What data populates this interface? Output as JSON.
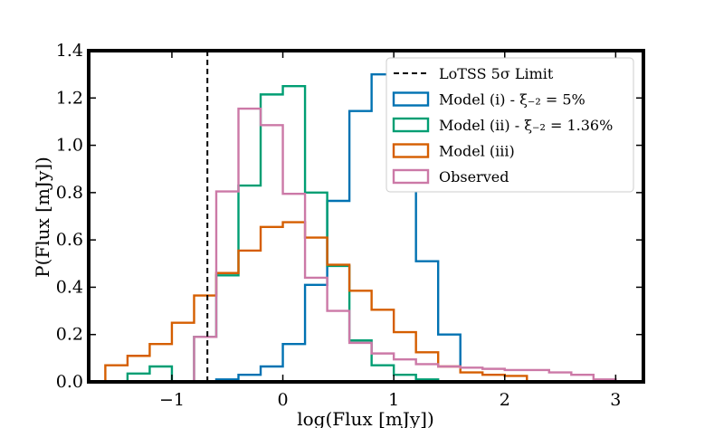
{
  "chart_data": {
    "type": "histogram",
    "title": "",
    "xlabel": "log(Flux [mJy])",
    "ylabel": "P(Flux [mJy])",
    "xlim": [
      -1.75,
      3.25
    ],
    "ylim": [
      0.0,
      1.4
    ],
    "xticks": [
      -1,
      0,
      1,
      2,
      3
    ],
    "xtick_labels": [
      "−1",
      "0",
      "1",
      "2",
      "3"
    ],
    "yticks": [
      0.0,
      0.2,
      0.4,
      0.6,
      0.8,
      1.0,
      1.2,
      1.4
    ],
    "ytick_labels": [
      "0.0",
      "0.2",
      "0.4",
      "0.6",
      "0.8",
      "1.0",
      "1.2",
      "1.4"
    ],
    "legend_position": "top-right",
    "vline": {
      "x": -0.68,
      "label": "LoTSS 5σ Limit",
      "color": "#000000",
      "style": "dashed"
    },
    "series": [
      {
        "name": "Model (i) - ξ₋₂ = 5%",
        "color": "#0072b2",
        "edges": [
          -0.6,
          -0.4,
          -0.2,
          0.0,
          0.2,
          0.4,
          0.6,
          0.8,
          1.0,
          1.2,
          1.4,
          1.6
        ],
        "values": [
          0.01,
          0.03,
          0.065,
          0.16,
          0.41,
          0.765,
          1.145,
          1.3,
          0.86,
          0.51,
          0.2,
          0.05
        ]
      },
      {
        "name": "Model (ii) - ξ₋₂ = 1.36%",
        "color": "#009e73",
        "edges": [
          -1.4,
          -1.2,
          -1.0,
          -0.8,
          -0.6,
          -0.4,
          -0.2,
          0.0,
          0.2,
          0.4,
          0.6,
          0.8,
          1.0,
          1.2,
          1.4
        ],
        "values": [
          0.035,
          0.065,
          0.0,
          0.19,
          0.45,
          0.83,
          1.215,
          1.25,
          0.8,
          0.49,
          0.175,
          0.07,
          0.03,
          0.01
        ]
      },
      {
        "name": "Model (iii)",
        "color": "#d55e00",
        "edges": [
          -1.6,
          -1.4,
          -1.2,
          -1.0,
          -0.8,
          -0.6,
          -0.4,
          -0.2,
          0.0,
          0.2,
          0.4,
          0.6,
          0.8,
          1.0,
          1.2,
          1.4,
          1.6,
          1.8,
          2.0,
          2.2
        ],
        "values": [
          0.07,
          0.11,
          0.16,
          0.25,
          0.365,
          0.46,
          0.555,
          0.655,
          0.675,
          0.61,
          0.495,
          0.385,
          0.305,
          0.21,
          0.125,
          0.065,
          0.04,
          0.03,
          0.025
        ]
      },
      {
        "name": "Observed",
        "color": "#cc79a7",
        "edges": [
          -0.8,
          -0.6,
          -0.4,
          -0.2,
          0.0,
          0.2,
          0.4,
          0.6,
          0.8,
          1.0,
          1.2,
          1.4,
          1.6,
          1.8,
          2.0,
          2.2,
          2.4,
          2.6,
          2.8,
          3.0
        ],
        "values": [
          0.19,
          0.805,
          1.155,
          1.085,
          0.795,
          0.44,
          0.3,
          0.165,
          0.12,
          0.095,
          0.075,
          0.065,
          0.06,
          0.055,
          0.05,
          0.05,
          0.04,
          0.03,
          0.01
        ]
      }
    ]
  }
}
